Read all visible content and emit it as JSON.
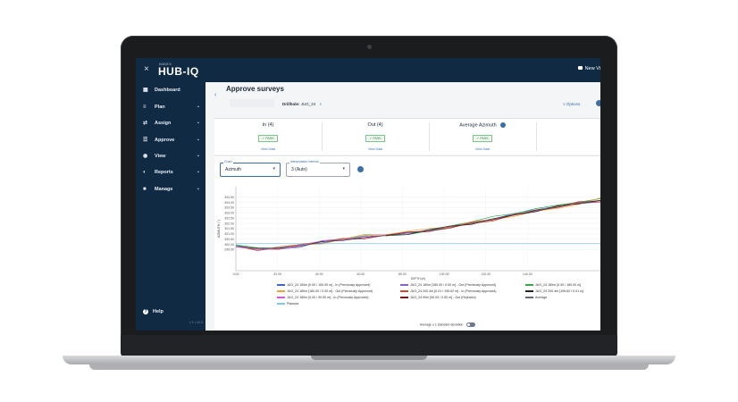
{
  "app": {
    "logo_top": "IMDEX",
    "logo": "HUB-IQ",
    "close_glyph": "×",
    "new_view_label": "New Vi",
    "version": "v 3.1.44.5"
  },
  "sidebar": {
    "items": [
      {
        "label": "Dashboard",
        "icon": "dashboard-icon",
        "glyph": "▦",
        "chevron": ""
      },
      {
        "label": "Plan",
        "icon": "plan-icon",
        "glyph": "≡",
        "chevron": "⌄"
      },
      {
        "label": "Assign",
        "icon": "assign-icon",
        "glyph": "⇄",
        "chevron": "⌄"
      },
      {
        "label": "Approve",
        "icon": "approve-icon",
        "glyph": "☰",
        "chevron": "⌄"
      },
      {
        "label": "View",
        "icon": "eye-icon",
        "glyph": "◉",
        "chevron": "⌄"
      },
      {
        "label": "Reports",
        "icon": "reports-icon",
        "glyph": "◐",
        "chevron": "⌄"
      },
      {
        "label": "Manage",
        "icon": "briefcase-icon",
        "glyph": "■",
        "chevron": "⌄"
      }
    ],
    "help": "Help",
    "help_glyph": "?"
  },
  "main": {
    "title": "Approve surveys",
    "back_glyph": "‹",
    "drillhole_label": "Drillhole:",
    "drillhole_value": "JUG_24",
    "search_glyph": "⌕",
    "options_label": "≡  Options"
  },
  "summary": {
    "columns": [
      {
        "title": "In (4)",
        "status": "✓ PASS",
        "link": "View Data"
      },
      {
        "title": "Out (4)",
        "status": "✓ PASS",
        "link": "View Data"
      },
      {
        "title": "Average Azimuth",
        "status": "✓ PASS",
        "link": "View Data"
      }
    ]
  },
  "controls": {
    "chart_label": "Chart",
    "chart_value": "Azimuth",
    "interp_label": "Interpolation interval",
    "interp_value": "3 (Auto)",
    "arrow": "▾",
    "toggle_label": "Average ± 1 standard deviation"
  },
  "chart_data": {
    "type": "line",
    "ylabel": "AZIMUTH (°)",
    "xlabel": "DEPTH (m)",
    "ylim": [
      297.5,
      305.5
    ],
    "xlim": [
      0,
      175
    ],
    "y_ticks": [
      "304.50",
      "304.00",
      "303.50",
      "303.00",
      "302.50",
      "302.00",
      "301.50",
      "301.00",
      "300.50",
      "300.00",
      "299.50"
    ],
    "x_ticks": [
      "0.00",
      "20.00",
      "40.00",
      "60.00",
      "80.00",
      "100.00",
      "120.00",
      "140.00"
    ],
    "planned_value": 300.1,
    "series": [
      {
        "name": "JUG_24 150m [0.00 / 150.00 m] - In (Previously Approved)",
        "color": "#3f66c6",
        "values": [
          299.9,
          299.5,
          299.6,
          299.9,
          300.2,
          300.4,
          300.7,
          300.9,
          301.0,
          301.3,
          301.7,
          302.1,
          302.5,
          302.9,
          303.3,
          303.7,
          304.0,
          304.2
        ]
      },
      {
        "name": "JUG_24 180m [180.00 / 0.00 m] - Out (Previously Approved)",
        "color": "#8a63d2",
        "values": [
          299.8,
          299.6,
          299.5,
          299.8,
          300.3,
          300.5,
          300.6,
          300.8,
          301.1,
          301.4,
          301.6,
          302.0,
          302.4,
          302.8,
          303.2,
          303.6,
          303.9,
          304.1
        ]
      },
      {
        "name": "JUG_24 180m [0.00 / 180.00 m] - In (Previously Approved)",
        "color": "#38a84a",
        "values": [
          300.0,
          299.6,
          299.7,
          300.0,
          300.2,
          300.6,
          300.8,
          300.8,
          301.0,
          301.2,
          301.8,
          302.2,
          302.6,
          303.0,
          303.4,
          303.7,
          304.1,
          304.3
        ]
      },
      {
        "name": "JUG_24 180m [180.00 / 0.00 m] - Out (Previously Approved)",
        "color": "#e8a23c",
        "values": [
          299.7,
          299.6,
          299.6,
          299.9,
          300.1,
          300.5,
          300.9,
          301.0,
          301.2,
          301.5,
          301.7,
          302.1,
          302.4,
          302.7,
          303.1,
          303.5,
          303.8,
          304.4
        ]
      },
      {
        "name": "JUG_24 200.4m [0.01 / 195.62 m] - In (Previously Approved)",
        "color": "#d9432f",
        "values": [
          299.8,
          299.5,
          299.7,
          300.0,
          300.3,
          300.5,
          300.6,
          300.9,
          301.1,
          301.3,
          301.6,
          302.0,
          302.3,
          302.8,
          303.2,
          303.6,
          304.0,
          304.1
        ]
      },
      {
        "name": "JUG_24 200.4m [195.62 / 0.01 m] - Out (Previously Approved)",
        "color": "#222222",
        "values": [
          299.9,
          299.6,
          299.6,
          299.9,
          300.2,
          300.4,
          300.7,
          300.8,
          301.0,
          301.4,
          301.7,
          302.0,
          302.4,
          302.8,
          303.2,
          303.6,
          303.9,
          304.2
        ]
      },
      {
        "name": "JUG_24 180m [0.00 / 90.00 m] - In (Previously Approved)",
        "color": "#d15ad6",
        "values": [
          299.8,
          299.5,
          299.6,
          299.9,
          300.3,
          300.5,
          300.7,
          300.9
        ]
      },
      {
        "name": "JUG_24 90m [90.00 / 0.00 m] - Out (Rejected)",
        "color": "#7b1616",
        "values": [
          null,
          null,
          null,
          null,
          null,
          null,
          null,
          300.9,
          301.1,
          301.3,
          301.6,
          302.0,
          302.4,
          302.8,
          303.2,
          303.6,
          303.9,
          304.2
        ]
      },
      {
        "name": "Average",
        "color": "#5b6b7b",
        "values": [
          299.83,
          299.56,
          299.63,
          299.91,
          300.22,
          300.48,
          300.71,
          300.88,
          301.07,
          301.34,
          301.68,
          302.07,
          302.43,
          302.83,
          303.23,
          303.61,
          303.94,
          304.21
        ]
      }
    ],
    "legend": [
      {
        "name": "JUG_24 150m [0.00 / 150.00 m] - In (Previously Approved)",
        "color": "#3f66c6"
      },
      {
        "name": "JUG_24 180m [180.00 / 0.00 m] - Out (Previously Approved)",
        "color": "#8a63d2"
      },
      {
        "name": "JUG_24 180m [0.00 / 180.00 m]",
        "color": "#38a84a"
      },
      {
        "name": "JUG_24 180m [180.00 / 0.00 m] - Out (Previously Approved)",
        "color": "#e8a23c"
      },
      {
        "name": "JUG_24 200.4m [0.01 / 195.62 m] - In (Previously Approved)",
        "color": "#d9432f"
      },
      {
        "name": "JUG_24 200.4m [195.62 / 0.01 m]",
        "color": "#222222"
      },
      {
        "name": "JUG_24 180m [0.00 / 90.00 m] - In (Previously Approved)",
        "color": "#d15ad6"
      },
      {
        "name": "JUG_24 90m [90.00 / 0.00 m] - Out (Rejected)",
        "color": "#7b1616"
      },
      {
        "name": "Average",
        "color": "#5b6b7b"
      },
      {
        "name": "Planned",
        "color": "#7cc7ea"
      }
    ]
  }
}
